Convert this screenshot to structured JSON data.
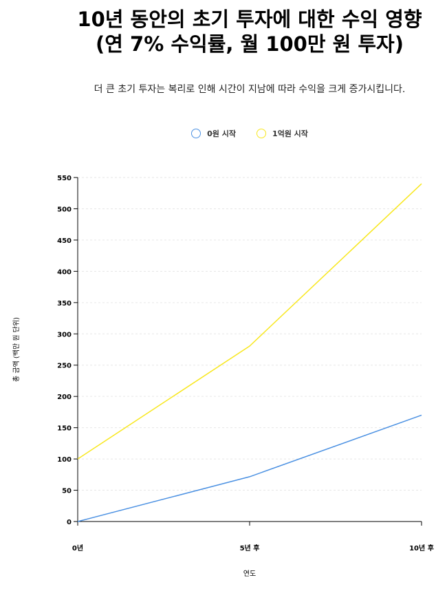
{
  "page": {
    "title_line1": "10년 동안의 초기 투자에 대한 수익 영향",
    "title_line2": "(연 7% 수익률, 월 100만 원 투자)",
    "subtitle": "더 큰 초기 투자는 복리로 인해 시간이 지남에 따라 수익을 크게 증가시킵니다."
  },
  "chart_data": {
    "type": "line",
    "title": "10년 동안의 초기 투자에 대한 수익 영향 (연 7% 수익률, 월 100만 원 투자)",
    "subtitle": "더 큰 초기 투자는 복리로 인해 시간이 지남에 따라 수익을 크게 증가시킵니다.",
    "categories": [
      "0년",
      "5년 후",
      "10년 후"
    ],
    "xlabel": "연도",
    "ylabel": "총 금액 (백만 원 단위)",
    "ylim": [
      0,
      550
    ],
    "yticks": [
      0,
      50,
      100,
      150,
      200,
      250,
      300,
      350,
      400,
      450,
      500,
      550
    ],
    "grid": true,
    "legend_position": "top-center",
    "series": [
      {
        "name": "0원 시작",
        "color": "#4a90e2",
        "values": [
          0,
          71.6,
          170
        ]
      },
      {
        "name": "1억원 시작",
        "color": "#f8e71c",
        "values": [
          100,
          280.5,
          540
        ]
      }
    ]
  }
}
